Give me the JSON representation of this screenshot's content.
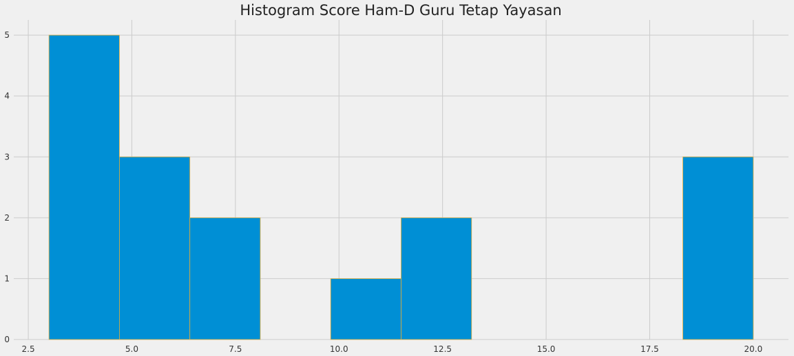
{
  "chart_data": {
    "type": "bar",
    "title": "Histogram Score Ham-D Guru Tetap Yayasan",
    "xlabel": "",
    "ylabel": "",
    "bins": [
      {
        "start": 3.0,
        "end": 4.7,
        "count": 5
      },
      {
        "start": 4.7,
        "end": 6.4,
        "count": 3
      },
      {
        "start": 6.4,
        "end": 8.1,
        "count": 2
      },
      {
        "start": 8.1,
        "end": 9.8,
        "count": 0
      },
      {
        "start": 9.8,
        "end": 11.5,
        "count": 1
      },
      {
        "start": 11.5,
        "end": 13.2,
        "count": 2
      },
      {
        "start": 13.2,
        "end": 14.9,
        "count": 0
      },
      {
        "start": 14.9,
        "end": 16.6,
        "count": 0
      },
      {
        "start": 16.6,
        "end": 18.3,
        "count": 0
      },
      {
        "start": 18.3,
        "end": 20.0,
        "count": 3
      }
    ],
    "xlim": [
      2.15,
      20.85
    ],
    "ylim": [
      0,
      5.25
    ],
    "xticks": [
      "2.5",
      "5.0",
      "7.5",
      "10.0",
      "12.5",
      "15.0",
      "17.5",
      "20.0"
    ],
    "yticks": [
      "0",
      "1",
      "2",
      "3",
      "4",
      "5"
    ],
    "grid": true,
    "colors": {
      "bar": "#008fd5",
      "edge": "#e5ae38",
      "grid": "#cbcbcb",
      "background": "#f0f0f0"
    }
  }
}
